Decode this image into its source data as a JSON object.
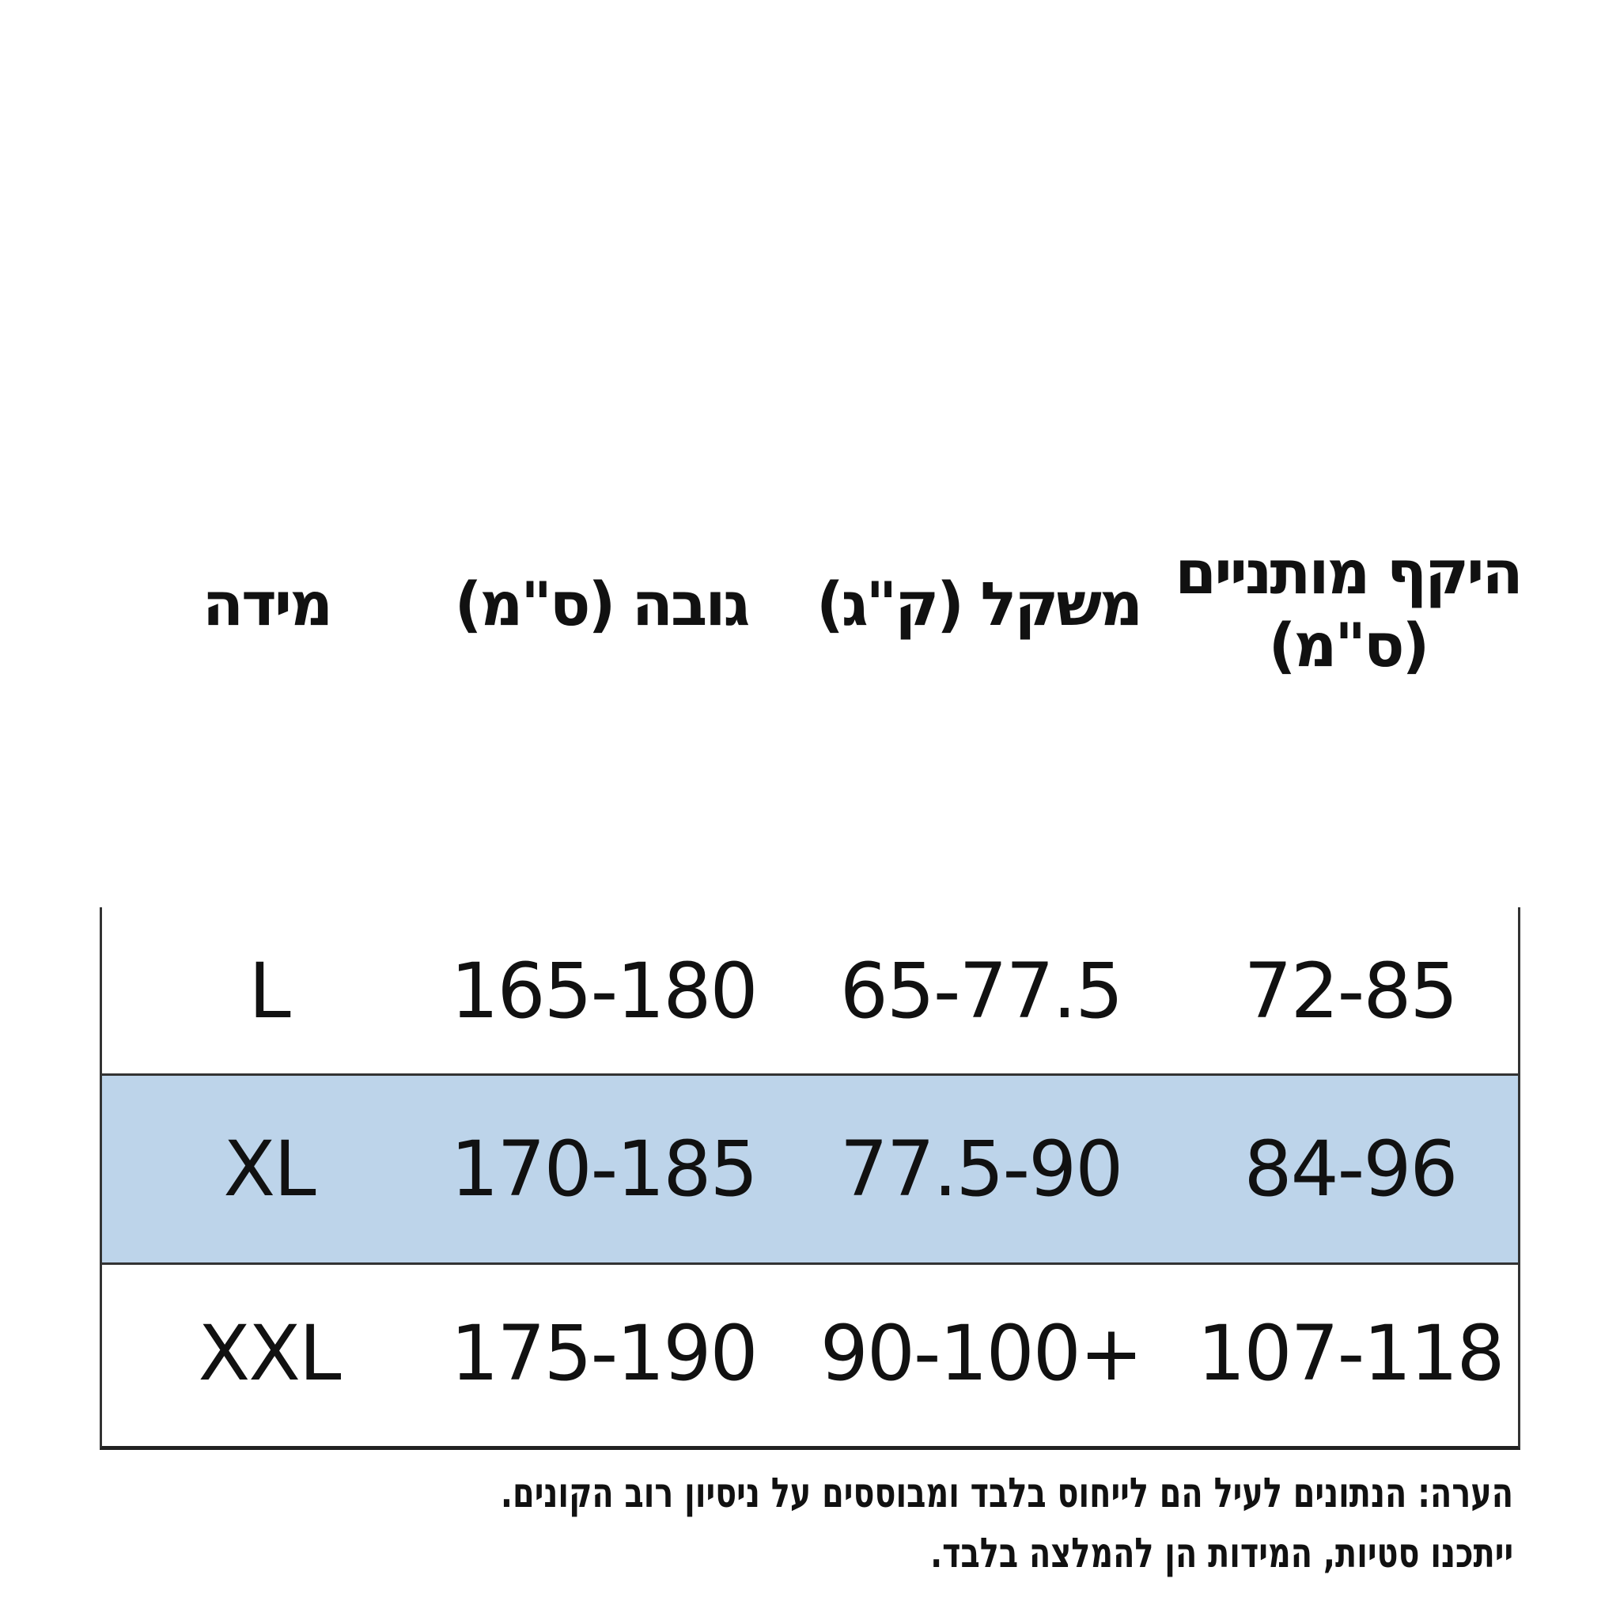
{
  "headers": {
    "size": "מידה",
    "height": "גובה (ס\"מ)",
    "weight": "משקל (ק\"ג)",
    "waist_line1": "היקף מותניים",
    "waist_line2": "(ס\"מ)"
  },
  "rows": [
    {
      "size": "L",
      "height": "165-180",
      "weight": "65-77.5",
      "waist": "72-85",
      "highlighted": false
    },
    {
      "size": "XL",
      "height": "170-185",
      "weight": "77.5-90",
      "waist": "84-96",
      "highlighted": true
    },
    {
      "size": "XXL",
      "height": "175-190",
      "weight": "90-100+",
      "waist": "107-118",
      "highlighted": false
    }
  ],
  "note": {
    "line1": "הערה: הנתונים לעיל הם לייחוס בלבד ומבוססים על ניסיון רוב הקונים.",
    "line2": "ייתכנו סטיות, המידות הן להמלצה בלבד."
  },
  "colors": {
    "highlight_row": "#bdd4ea",
    "border": "#333333"
  }
}
